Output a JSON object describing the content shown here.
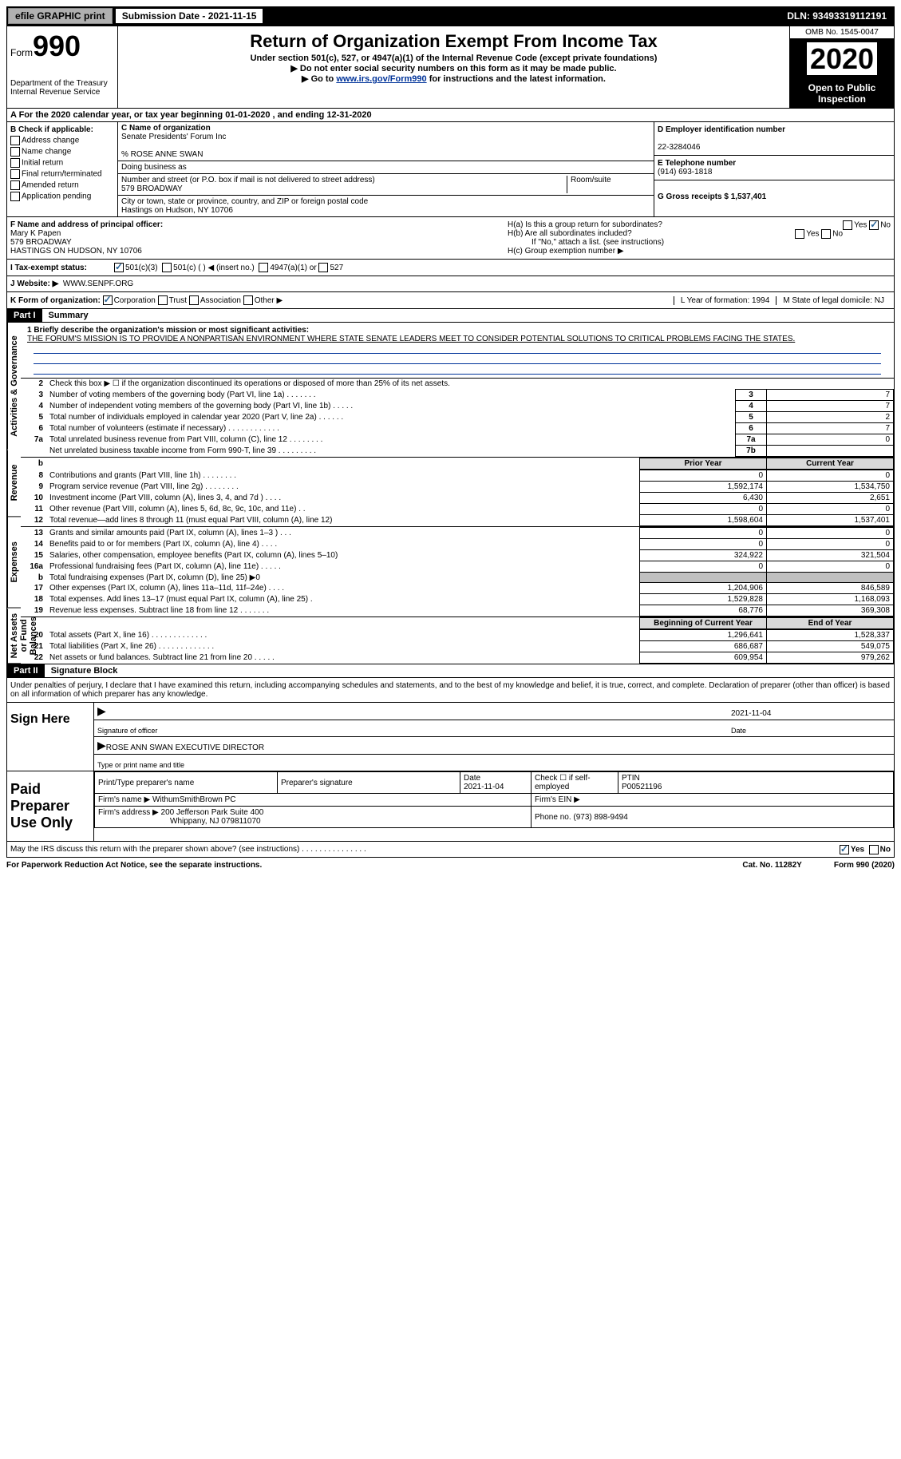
{
  "top": {
    "efile": "efile GRAPHIC print",
    "sub_date_label": "Submission Date - 2021-11-15",
    "dln": "DLN: 93493319112191"
  },
  "header": {
    "form_label": "Form",
    "form_num": "990",
    "title": "Return of Organization Exempt From Income Tax",
    "sub1": "Under section 501(c), 527, or 4947(a)(1) of the Internal Revenue Code (except private foundations)",
    "sub2": "▶ Do not enter social security numbers on this form as it may be made public.",
    "sub3_pre": "▶ Go to ",
    "sub3_link": "www.irs.gov/Form990",
    "sub3_post": " for instructions and the latest information.",
    "dept1": "Department of the Treasury",
    "dept2": "Internal Revenue Service",
    "omb": "OMB No. 1545-0047",
    "year": "2020",
    "open_public": "Open to Public Inspection"
  },
  "row_a": "A For the 2020 calendar year, or tax year beginning 01-01-2020    , and ending 12-31-2020",
  "section_b": {
    "title": "B Check if applicable:",
    "opts": [
      "Address change",
      "Name change",
      "Initial return",
      "Final return/terminated",
      "Amended return",
      "Application pending"
    ],
    "c_label": "C Name of organization",
    "c_name": "Senate Presidents' Forum Inc",
    "c_care": "% ROSE ANNE SWAN",
    "dba_label": "Doing business as",
    "addr_label": "Number and street (or P.O. box if mail is not delivered to street address)",
    "room_label": "Room/suite",
    "addr": "579 BROADWAY",
    "city_label": "City or town, state or province, country, and ZIP or foreign postal code",
    "city": "Hastings on Hudson, NY  10706",
    "d_label": "D Employer identification number",
    "d_ein": "22-3284046",
    "e_label": "E Telephone number",
    "e_phone": "(914) 693-1818",
    "g_label": "G Gross receipts $ 1,537,401"
  },
  "section_f": {
    "f_label": "F  Name and address of principal officer:",
    "f_name": "Mary K Papen",
    "f_addr1": "579 BROADWAY",
    "f_addr2": "HASTINGS ON HUDSON, NY  10706",
    "ha_label": "H(a)  Is this a group return for subordinates?",
    "hb_label": "H(b)  Are all subordinates included?",
    "hb_note": "If \"No,\" attach a list. (see instructions)",
    "hc_label": "H(c)  Group exemption number ▶",
    "yes": "Yes",
    "no": "No"
  },
  "status": {
    "i_label": "I  Tax-exempt status:",
    "i1": "501(c)(3)",
    "i2": "501(c) (   ) ◀ (insert no.)",
    "i3": "4947(a)(1) or",
    "i4": "527",
    "j_label": "J  Website: ▶",
    "j_url": "WWW.SENPF.ORG"
  },
  "k_row": {
    "k_label": "K Form of organization:",
    "k1": "Corporation",
    "k2": "Trust",
    "k3": "Association",
    "k4": "Other ▶",
    "l_label": "L Year of formation: 1994",
    "m_label": "M State of legal domicile: NJ"
  },
  "part1": {
    "header": "Part I",
    "title": "Summary",
    "line1_label": "1  Briefly describe the organization's mission or most significant activities:",
    "mission": "THE FORUM'S MISSION IS TO PROVIDE A NONPARTISAN ENVIRONMENT WHERE STATE SENATE LEADERS MEET TO CONSIDER POTENTIAL SOLUTIONS TO CRITICAL PROBLEMS FACING THE STATES.",
    "line2": "Check this box ▶ ☐  if the organization discontinued its operations or disposed of more than 25% of its net assets.",
    "sections": {
      "gov_label": "Activities & Governance",
      "rev_label": "Revenue",
      "exp_label": "Expenses",
      "net_label": "Net Assets or Fund Balances"
    },
    "prior_header": "Prior Year",
    "curr_header": "Current Year",
    "boy_header": "Beginning of Current Year",
    "eoy_header": "End of Year",
    "rows_gov": [
      {
        "n": "3",
        "t": "Number of voting members of the governing body (Part VI, line 1a)   .    .    .    .    .    .    .",
        "box": "3",
        "v": "7"
      },
      {
        "n": "4",
        "t": "Number of independent voting members of the governing body (Part VI, line 1b)   .    .    .    .    .",
        "box": "4",
        "v": "7"
      },
      {
        "n": "5",
        "t": "Total number of individuals employed in calendar year 2020 (Part V, line 2a)   .    .    .    .    .    .",
        "box": "5",
        "v": "2"
      },
      {
        "n": "6",
        "t": "Total number of volunteers (estimate if necessary)   .    .    .    .    .    .    .    .    .    .    .    .",
        "box": "6",
        "v": "7"
      },
      {
        "n": "7a",
        "t": "Total unrelated business revenue from Part VIII, column (C), line 12   .    .    .    .    .    .    .    .",
        "box": "7a",
        "v": "0"
      },
      {
        "n": "",
        "t": "Net unrelated business taxable income from Form 990-T, line 39   .    .    .    .    .    .    .    .    .",
        "box": "7b",
        "v": ""
      }
    ],
    "rows_rev": [
      {
        "n": "8",
        "t": "Contributions and grants (Part VIII, line 1h)   .    .    .    .    .    .    .    .",
        "p": "0",
        "c": "0"
      },
      {
        "n": "9",
        "t": "Program service revenue (Part VIII, line 2g)   .    .    .    .    .    .    .    .",
        "p": "1,592,174",
        "c": "1,534,750"
      },
      {
        "n": "10",
        "t": "Investment income (Part VIII, column (A), lines 3, 4, and 7d )   .    .    .    .",
        "p": "6,430",
        "c": "2,651"
      },
      {
        "n": "11",
        "t": "Other revenue (Part VIII, column (A), lines 5, 6d, 8c, 9c, 10c, and 11e)   .    .",
        "p": "0",
        "c": "0"
      },
      {
        "n": "12",
        "t": "Total revenue—add lines 8 through 11 (must equal Part VIII, column (A), line 12)",
        "p": "1,598,604",
        "c": "1,537,401"
      }
    ],
    "rows_exp": [
      {
        "n": "13",
        "t": "Grants and similar amounts paid (Part IX, column (A), lines 1–3 )   .    .    .",
        "p": "0",
        "c": "0"
      },
      {
        "n": "14",
        "t": "Benefits paid to or for members (Part IX, column (A), line 4)   .    .    .    .",
        "p": "0",
        "c": "0"
      },
      {
        "n": "15",
        "t": "Salaries, other compensation, employee benefits (Part IX, column (A), lines 5–10)",
        "p": "324,922",
        "c": "321,504"
      },
      {
        "n": "16a",
        "t": "Professional fundraising fees (Part IX, column (A), line 11e)   .    .    .    .    .",
        "p": "0",
        "c": "0"
      },
      {
        "n": "b",
        "t": "Total fundraising expenses (Part IX, column (D), line 25) ▶0",
        "p": "",
        "c": "",
        "shaded": true
      },
      {
        "n": "17",
        "t": "Other expenses (Part IX, column (A), lines 11a–11d, 11f–24e)   .    .    .    .",
        "p": "1,204,906",
        "c": "846,589"
      },
      {
        "n": "18",
        "t": "Total expenses. Add lines 13–17 (must equal Part IX, column (A), line 25)   .",
        "p": "1,529,828",
        "c": "1,168,093"
      },
      {
        "n": "19",
        "t": "Revenue less expenses. Subtract line 18 from line 12   .    .    .    .    .    .    .",
        "p": "68,776",
        "c": "369,308"
      }
    ],
    "rows_net": [
      {
        "n": "20",
        "t": "Total assets (Part X, line 16)   .    .    .    .    .    .    .    .    .    .    .    .    .",
        "p": "1,296,641",
        "c": "1,528,337"
      },
      {
        "n": "21",
        "t": "Total liabilities (Part X, line 26)   .    .    .    .    .    .    .    .    .    .    .    .    .",
        "p": "686,687",
        "c": "549,075"
      },
      {
        "n": "22",
        "t": "Net assets or fund balances. Subtract line 21 from line 20   .    .    .    .    .",
        "p": "609,954",
        "c": "979,262"
      }
    ]
  },
  "part2": {
    "header": "Part II",
    "title": "Signature Block",
    "penalty": "Under penalties of perjury, I declare that I have examined this return, including accompanying schedules and statements, and to the best of my knowledge and belief, it is true, correct, and complete. Declaration of preparer (other than officer) is based on all information of which preparer has any knowledge.",
    "sign_here": "Sign Here",
    "sig_date": "2021-11-04",
    "sig_officer_label": "Signature of officer",
    "date_label": "Date",
    "officer_name": "ROSE ANN SWAN  EXECUTIVE DIRECTOR",
    "type_label": "Type or print name and title",
    "paid_label": "Paid Preparer Use Only",
    "prep_name_label": "Print/Type preparer's name",
    "prep_sig_label": "Preparer's signature",
    "prep_date_label": "Date",
    "prep_date": "2021-11-04",
    "check_if": "Check ☐ if self-employed",
    "ptin_label": "PTIN",
    "ptin": "P00521196",
    "firm_name_label": "Firm's name     ▶",
    "firm_name": "WithumSmithBrown PC",
    "firm_ein_label": "Firm's EIN ▶",
    "firm_addr_label": "Firm's address ▶",
    "firm_addr1": "200 Jefferson Park Suite 400",
    "firm_addr2": "Whippany, NJ  079811070",
    "firm_phone_label": "Phone no. (973) 898-9494",
    "may_irs": "May the IRS discuss this return with the preparer shown above? (see instructions)   .    .    .    .    .    .    .    .    .    .    .    .    .    .    .",
    "may_yes": "Yes",
    "may_no": "No"
  },
  "footer": {
    "paperwork": "For Paperwork Reduction Act Notice, see the separate instructions.",
    "cat": "Cat. No. 11282Y",
    "form": "Form 990 (2020)"
  }
}
